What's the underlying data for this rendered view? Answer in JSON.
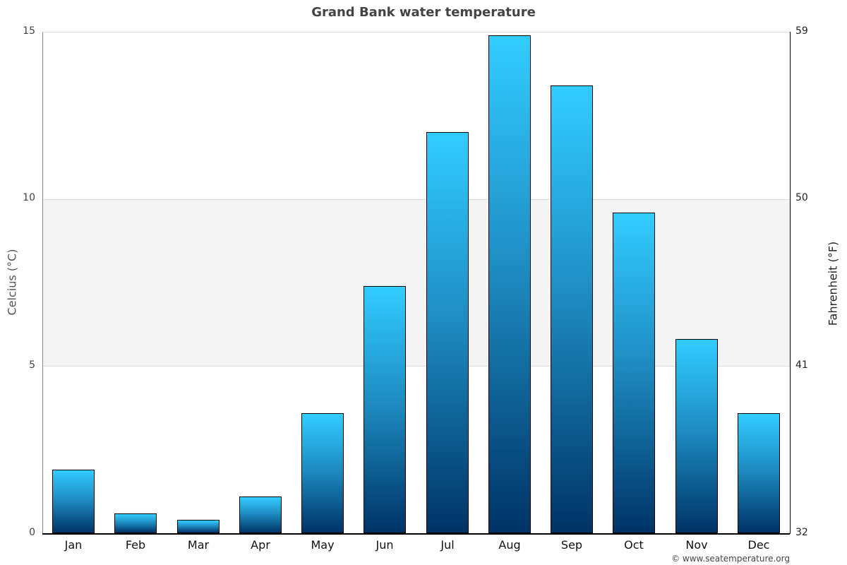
{
  "title": "Grand Bank water temperature",
  "credit": "© www.seatemperature.org",
  "axes": {
    "left_label": "Celcius (°C)",
    "right_label": "Fahrenheit (°F)",
    "left_ticks": [
      "0",
      "5",
      "10",
      "15"
    ],
    "right_ticks": [
      "32",
      "41",
      "50",
      "59"
    ]
  },
  "colors": {
    "bar_top": "#33ccff",
    "bar_bottom": "#003366",
    "band": "#f3f3f3",
    "title": "#444444"
  },
  "chart_data": {
    "type": "bar",
    "title": "Grand Bank water temperature",
    "xlabel": "",
    "ylabel": "Celcius (°C)",
    "ylabel_secondary": "Fahrenheit (°F)",
    "categories": [
      "Jan",
      "Feb",
      "Mar",
      "Apr",
      "May",
      "Jun",
      "Jul",
      "Aug",
      "Sep",
      "Oct",
      "Nov",
      "Dec"
    ],
    "values": [
      1.9,
      0.6,
      0.4,
      1.1,
      3.6,
      7.4,
      12.0,
      14.9,
      13.4,
      9.6,
      5.8,
      3.6
    ],
    "ylim": [
      0,
      15
    ],
    "ylim_secondary": [
      32,
      59
    ],
    "yticks": [
      0,
      5,
      10,
      15
    ],
    "yticks_secondary": [
      32,
      41,
      50,
      59
    ],
    "grid": true,
    "legend": null
  }
}
